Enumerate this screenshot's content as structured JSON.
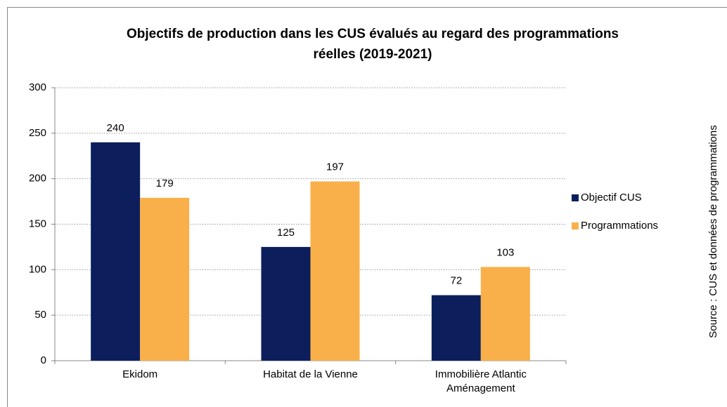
{
  "chart_data": {
    "type": "bar",
    "title": "Objectifs de production dans les CUS évalués au regard des programmations réelles (2019-2021)",
    "categories": [
      "Ekidom",
      "Habitat de la Vienne",
      "Immobilière Atlantic Aménagement"
    ],
    "series": [
      {
        "name": "Objectif CUS",
        "color": "#0c1f5c",
        "values": [
          240,
          125,
          72
        ]
      },
      {
        "name": "Programmations",
        "color": "#f9b04a",
        "values": [
          179,
          197,
          103
        ]
      }
    ],
    "ylim": [
      0,
      300
    ],
    "yticks": [
      0,
      50,
      100,
      150,
      200,
      250,
      300
    ],
    "grid": true,
    "legend": "right",
    "annotation": "Source : CUS et données de programmations"
  }
}
